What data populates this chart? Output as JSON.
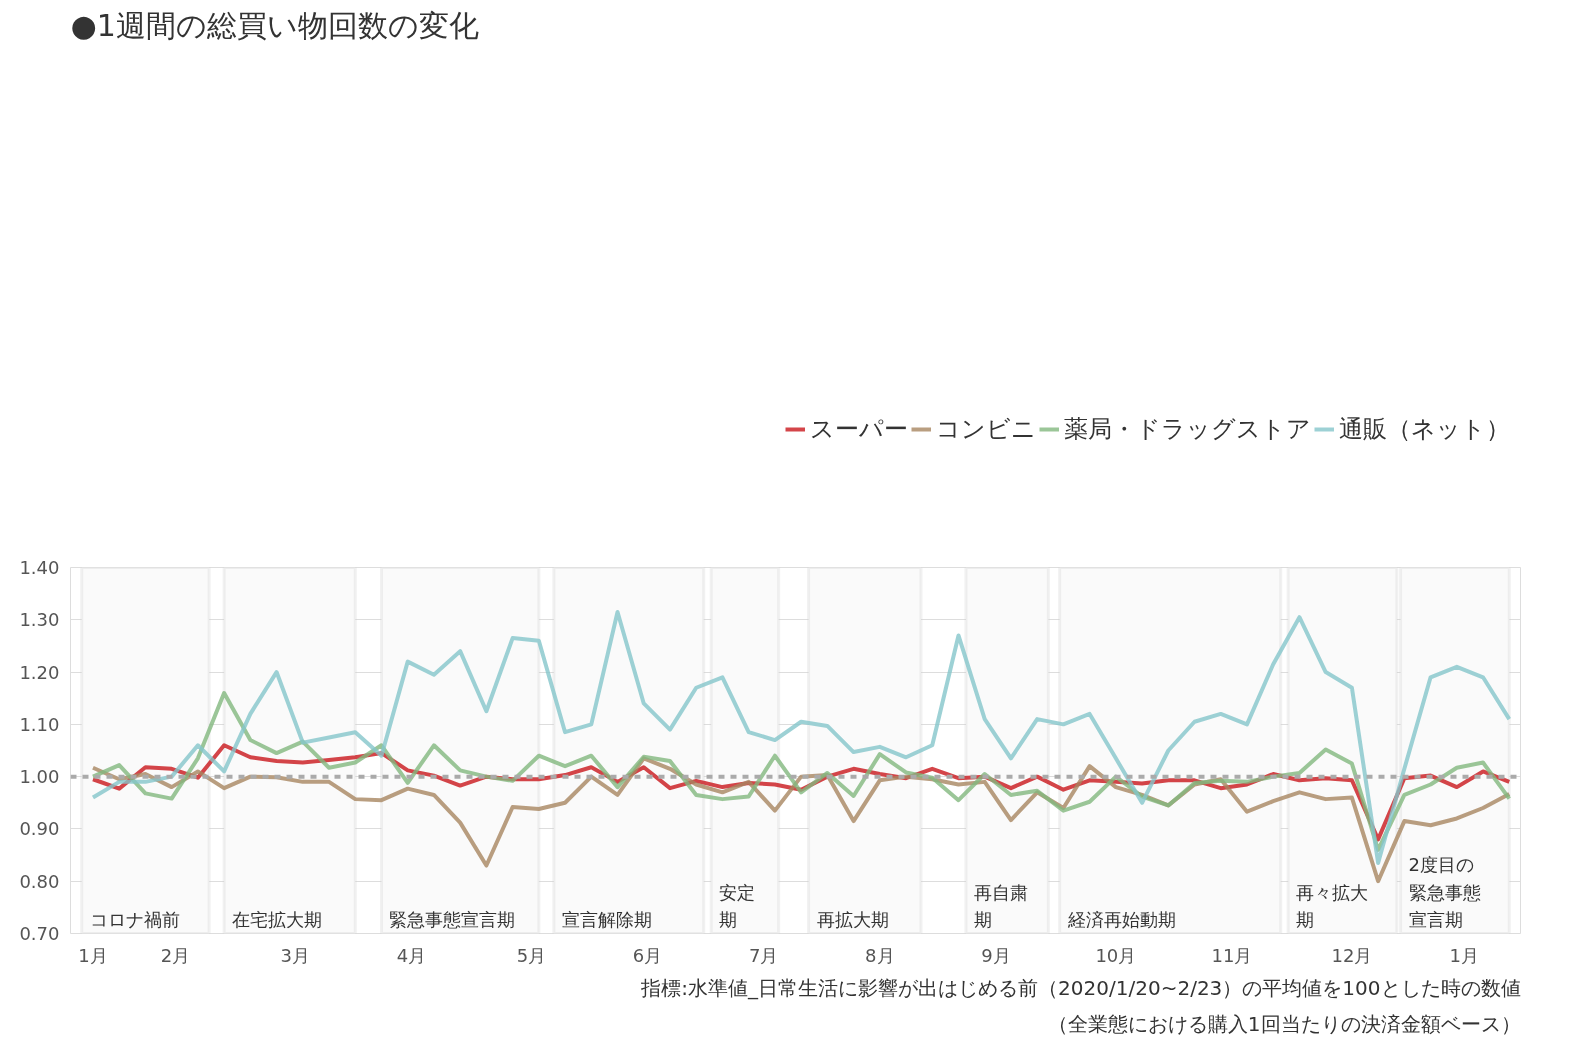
{
  "chart_data": {
    "type": "line",
    "title": "●1週間の総買い物回数の変化",
    "x": [
      "2020-01-20",
      "2020-01-27",
      "2020-02-03",
      "2020-02-10",
      "2020-02-17",
      "2020-02-24",
      "2020-03-02",
      "2020-03-09",
      "2020-03-16",
      "2020-03-23",
      "2020-03-30",
      "2020-04-06",
      "2020-04-13",
      "2020-04-20",
      "2020-04-27",
      "2020-05-04",
      "2020-05-11",
      "2020-05-18",
      "2020-05-25",
      "2020-06-01",
      "2020-06-08",
      "2020-06-15",
      "2020-06-22",
      "2020-06-29",
      "2020-07-06",
      "2020-07-13",
      "2020-07-20",
      "2020-07-27",
      "2020-08-03",
      "2020-08-10",
      "2020-08-17",
      "2020-08-24",
      "2020-08-31",
      "2020-09-07",
      "2020-09-14",
      "2020-09-21",
      "2020-09-28",
      "2020-10-05",
      "2020-10-12",
      "2020-10-19",
      "2020-10-26",
      "2020-11-02",
      "2020-11-09",
      "2020-11-16",
      "2020-11-23",
      "2020-11-30",
      "2020-12-07",
      "2020-12-14",
      "2020-12-21",
      "2020-12-28",
      "2021-01-04",
      "2021-01-11",
      "2021-01-18",
      "2021-01-25",
      "2021-02-01"
    ],
    "series": [
      {
        "name": "スーパー",
        "color": "#c9171b",
        "values": [
          0.995,
          0.977,
          1.018,
          1.015,
          0.998,
          1.06,
          1.037,
          1.03,
          1.027,
          1.032,
          1.037,
          1.045,
          1.012,
          1.002,
          0.983,
          1.0,
          0.995,
          0.995,
          1.003,
          1.018,
          0.99,
          1.018,
          0.978,
          0.992,
          0.98,
          0.988,
          0.985,
          0.975,
          1.0,
          1.015,
          1.005,
          0.997,
          1.015,
          0.997,
          1.0,
          0.978,
          1.0,
          0.975,
          0.993,
          0.99,
          0.987,
          0.993,
          0.993,
          0.978,
          0.985,
          1.005,
          0.993,
          0.997,
          0.993,
          0.88,
          0.997,
          1.002,
          0.98,
          1.01,
          0.99
        ]
      },
      {
        "name": "コンビニ",
        "color": "#a88660",
        "values": [
          1.017,
          0.995,
          1.005,
          0.98,
          1.01,
          0.978,
          1.0,
          0.999,
          0.99,
          0.99,
          0.957,
          0.955,
          0.977,
          0.965,
          0.912,
          0.83,
          0.942,
          0.938,
          0.95,
          1.0,
          0.965,
          1.035,
          1.015,
          0.985,
          0.97,
          0.99,
          0.935,
          1.0,
          1.003,
          0.915,
          0.993,
          1.0,
          0.995,
          0.985,
          0.99,
          0.917,
          0.97,
          0.94,
          1.02,
          0.98,
          0.965,
          0.945,
          0.985,
          0.995,
          0.933,
          0.953,
          0.97,
          0.957,
          0.96,
          0.8,
          0.915,
          0.907,
          0.92,
          0.94,
          0.967
        ]
      },
      {
        "name": "薬局・ドラッグストア",
        "color": "#82b87e",
        "values": [
          1.0,
          1.022,
          0.968,
          0.958,
          1.035,
          1.16,
          1.07,
          1.045,
          1.067,
          1.017,
          1.027,
          1.06,
          0.988,
          1.06,
          1.012,
          1.0,
          0.992,
          1.04,
          1.02,
          1.04,
          0.98,
          1.038,
          1.03,
          0.965,
          0.957,
          0.962,
          1.04,
          0.97,
          1.007,
          0.963,
          1.043,
          1.008,
          0.998,
          0.955,
          1.005,
          0.965,
          0.973,
          0.935,
          0.952,
          1.0,
          0.962,
          0.945,
          0.988,
          0.992,
          0.99,
          1.0,
          1.007,
          1.052,
          1.025,
          0.86,
          0.965,
          0.985,
          1.017,
          1.027,
          0.958
        ]
      },
      {
        "name": "通販（ネット）",
        "color": "#84c5cb",
        "values": [
          0.96,
          0.99,
          0.99,
          1.0,
          1.06,
          1.01,
          1.12,
          1.2,
          1.065,
          1.075,
          1.085,
          1.04,
          1.22,
          1.195,
          1.24,
          1.125,
          1.265,
          1.26,
          1.085,
          1.1,
          1.315,
          1.14,
          1.09,
          1.17,
          1.19,
          1.085,
          1.07,
          1.105,
          1.097,
          1.047,
          1.057,
          1.037,
          1.06,
          1.27,
          1.11,
          1.035,
          1.11,
          1.1,
          1.12,
          1.035,
          0.95,
          1.05,
          1.105,
          1.12,
          1.1,
          1.215,
          1.305,
          1.2,
          1.17,
          0.835,
          1.015,
          1.19,
          1.21,
          1.19,
          1.11
        ]
      }
    ],
    "xlim": [
      "2020-01-14",
      "2021-02-04"
    ],
    "xticks": [
      {
        "value": "2020-01-20",
        "label": "1月"
      },
      {
        "value": "2020-02-11",
        "label": "2月"
      },
      {
        "value": "2020-03-14",
        "label": "3月"
      },
      {
        "value": "2020-04-14",
        "label": "4月"
      },
      {
        "value": "2020-05-16",
        "label": "5月"
      },
      {
        "value": "2020-06-16",
        "label": "6月"
      },
      {
        "value": "2020-07-17",
        "label": "7月"
      },
      {
        "value": "2020-08-17",
        "label": "8月"
      },
      {
        "value": "2020-09-17",
        "label": "9月"
      },
      {
        "value": "2020-10-19",
        "label": "10月"
      },
      {
        "value": "2020-11-19",
        "label": "11月"
      },
      {
        "value": "2020-12-21",
        "label": "12月"
      },
      {
        "value": "2021-01-20",
        "label": "1月"
      }
    ],
    "ylim": [
      0.7,
      1.4
    ],
    "yticks": [
      {
        "value": 0.7,
        "label": "0.70"
      },
      {
        "value": 0.8,
        "label": "0.80"
      },
      {
        "value": 0.9,
        "label": "0.90"
      },
      {
        "value": 1.0,
        "label": "1.00"
      },
      {
        "value": 1.1,
        "label": "1.10"
      },
      {
        "value": 1.2,
        "label": "1.20"
      },
      {
        "value": 1.3,
        "label": "1.30"
      },
      {
        "value": 1.4,
        "label": "1.40"
      }
    ],
    "grid": "y",
    "legend": "top right",
    "line_style": "solid",
    "ref_lines": [
      {
        "axis": "y",
        "value": 1.0,
        "label": null,
        "color": "#aaaaaa",
        "line_style": "dashed"
      }
    ],
    "bands": [
      {
        "axis": "x",
        "from": "2020-01-17",
        "to": "2020-02-20",
        "label": "コロナ禍前",
        "color": "#fafafa"
      },
      {
        "axis": "x",
        "from": "2020-02-24",
        "to": "2020-03-30",
        "label": "在宅拡大期",
        "color": "#fafafa"
      },
      {
        "axis": "x",
        "from": "2020-04-06",
        "to": "2020-05-18",
        "label": "緊急事態宣言期",
        "color": "#fafafa"
      },
      {
        "axis": "x",
        "from": "2020-05-22",
        "to": "2020-07-01",
        "label": "宣言解除期",
        "color": "#fafafa"
      },
      {
        "axis": "x",
        "from": "2020-07-03",
        "to": "2020-07-21",
        "label": "安定期",
        "color": "#fafafa"
      },
      {
        "axis": "x",
        "from": "2020-07-29",
        "to": "2020-08-28",
        "label": "再拡大期",
        "color": "#fafafa"
      },
      {
        "axis": "x",
        "from": "2020-09-09",
        "to": "2020-10-01",
        "label": "再自粛期",
        "color": "#fafafa"
      },
      {
        "axis": "x",
        "from": "2020-10-04",
        "to": "2020-12-02",
        "label": "経済再始動期",
        "color": "#fafafa"
      },
      {
        "axis": "x",
        "from": "2020-12-04",
        "to": "2021-01-02",
        "label": "再々拡大期",
        "color": "#fafafa"
      },
      {
        "axis": "x",
        "from": "2021-01-03",
        "to": "2021-02-01",
        "label": "2度目の緊急事態宣言期",
        "color": "#fafafa"
      }
    ],
    "annotations": [
      "指標:水準値_日常生活に影響が出はじめる前（2020/1/20~2/23）の平均値を100とした時の数値",
      "（全業態における購入1回当たりの決済金額ベース）"
    ]
  }
}
